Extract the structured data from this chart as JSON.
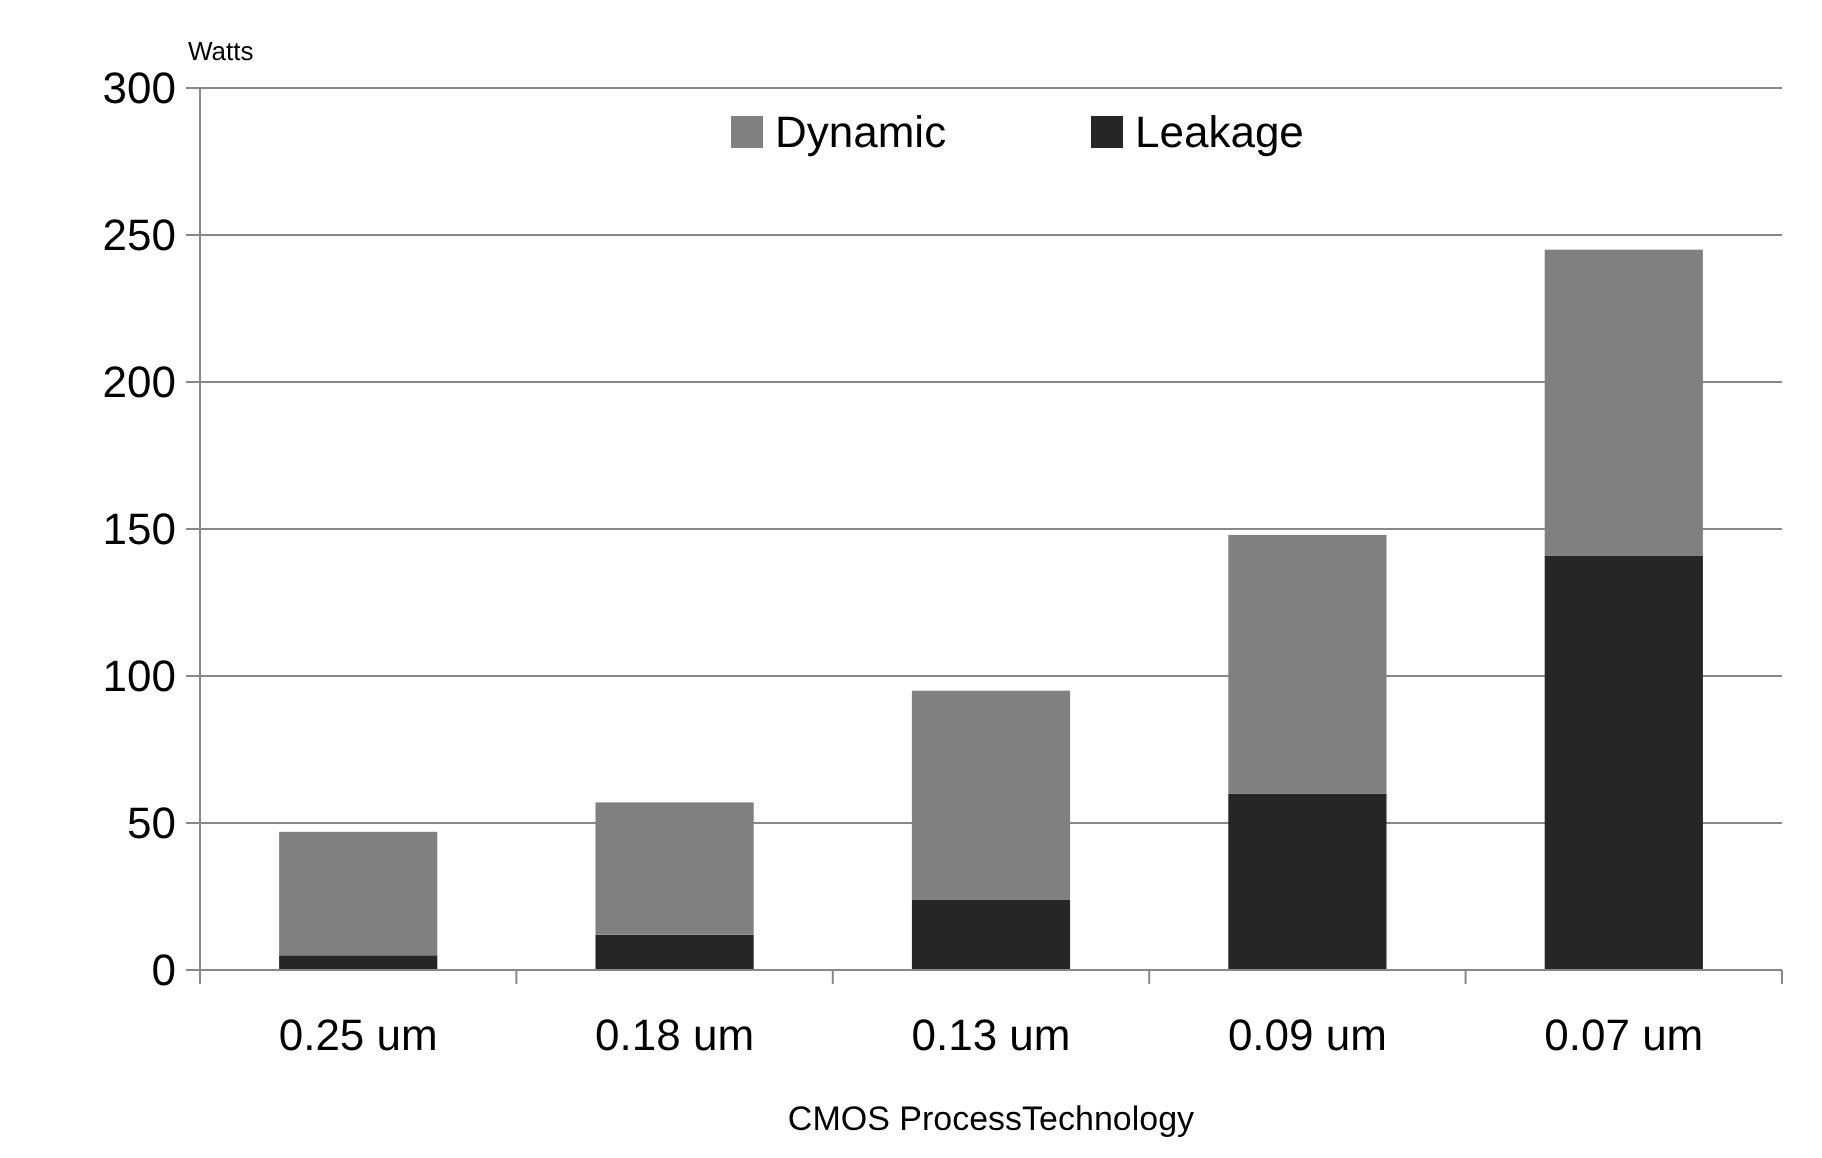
{
  "chart_data": {
    "type": "bar",
    "stacked": true,
    "xlabel": "CMOS ProcessTechnology",
    "ylabel": "Watts",
    "categories": [
      "0.25 um",
      "0.18 um",
      "0.13 um",
      "0.09 um",
      "0.07 um"
    ],
    "series": [
      {
        "name": "Leakage",
        "color": "#262626",
        "values": [
          5,
          12,
          24,
          60,
          141
        ]
      },
      {
        "name": "Dynamic",
        "color": "#808080",
        "values": [
          42,
          45,
          71,
          88,
          104
        ]
      }
    ],
    "ylim": [
      0,
      300
    ],
    "yticks": [
      0,
      50,
      100,
      150,
      200,
      250,
      300
    ],
    "grid": "y",
    "legend": "top"
  }
}
